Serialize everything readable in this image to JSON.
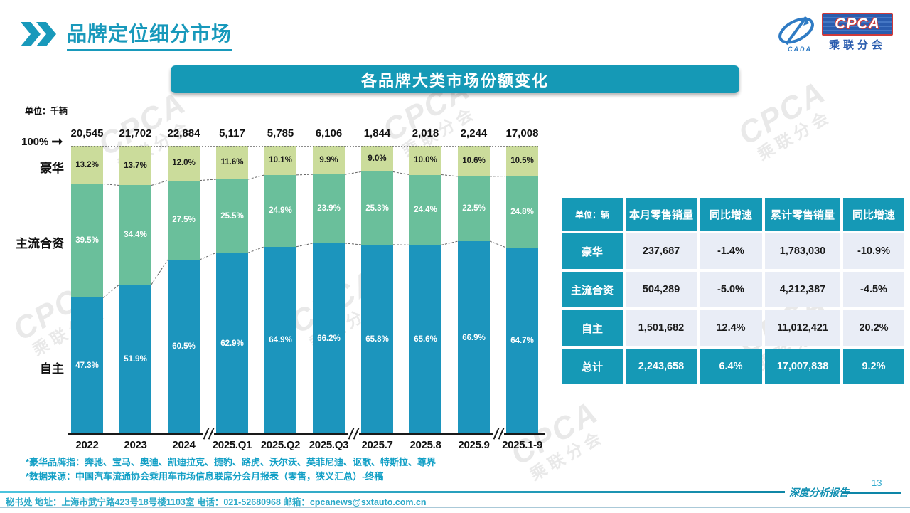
{
  "page": {
    "title": "品牌定位细分市场",
    "page_number": "13",
    "report_label": "深度分析报告"
  },
  "logo": {
    "cpca": "CPCA",
    "sub": "乘联分会",
    "mark_caption": "CADA"
  },
  "chart": {
    "banner_title": "各品牌大类市场份额变化",
    "unit_label": "单位：千辆",
    "axis_top_label": "100%",
    "side_labels": {
      "luxury": "豪华",
      "mainstream": "主流合资",
      "domestic": "自主"
    }
  },
  "chart_data": {
    "type": "bar",
    "stacked": true,
    "title": "各品牌大类市场份额变化",
    "unit": "千辆",
    "ylim": [
      0,
      100
    ],
    "categories": [
      "2022",
      "2023",
      "2024",
      "2025.Q1",
      "2025.Q2",
      "2025.Q3",
      "2025.7",
      "2025.8",
      "2025.9",
      "2025.1-9"
    ],
    "totals": [
      20545,
      21702,
      22884,
      5117,
      5785,
      6106,
      1844,
      2018,
      2244,
      17008
    ],
    "series": [
      {
        "name": "自主",
        "values": [
          47.3,
          51.9,
          60.5,
          62.9,
          64.9,
          66.2,
          65.8,
          65.6,
          66.9,
          64.7
        ],
        "color": "#1c95bd",
        "label_color": "#ffffff"
      },
      {
        "name": "主流合资",
        "values": [
          39.5,
          34.4,
          27.5,
          25.5,
          24.9,
          23.9,
          25.3,
          24.4,
          22.5,
          24.8
        ],
        "color": "#6abf9b",
        "label_color": "#ffffff"
      },
      {
        "name": "豪华",
        "values": [
          13.2,
          13.7,
          12.0,
          11.6,
          10.1,
          9.9,
          9.0,
          10.0,
          10.6,
          10.5
        ],
        "color": "#cbdc9b",
        "label_color": "#1a1a1a"
      }
    ],
    "axis_breaks_after": [
      "2024",
      "2025.Q3",
      "2025.9"
    ],
    "legend_position": "left",
    "grid": false
  },
  "table": {
    "unit_header": "单位：辆",
    "columns": [
      "本月零售销量",
      "同比增速",
      "累计零售销量",
      "同比增速"
    ],
    "rows": [
      {
        "label": "豪华",
        "values": [
          "237,687",
          "-1.4%",
          "1,783,030",
          "-10.9%"
        ],
        "highlight": false
      },
      {
        "label": "主流合资",
        "values": [
          "504,289",
          "-5.0%",
          "4,212,387",
          "-4.5%"
        ],
        "highlight": false
      },
      {
        "label": "自主",
        "values": [
          "1,501,682",
          "12.4%",
          "11,012,421",
          "20.2%"
        ],
        "highlight": false
      },
      {
        "label": "总计",
        "values": [
          "2,243,658",
          "6.4%",
          "17,007,838",
          "9.2%"
        ],
        "highlight": true
      }
    ]
  },
  "footnotes": [
    "*豪华品牌指：奔驰、宝马、奥迪、凯迪拉克、捷豹、路虎、沃尔沃、英菲尼迪、讴歌、特斯拉、尊界",
    "*数据来源：中国汽车流通协会乘用车市场信息联席分会月报表（零售，狭义汇总）-终稿"
  ],
  "footer": {
    "address_line": "秘书处  地址：上海市武宁路423号18号楼1103室  电话：021-52680968  邮箱：cpcanews@sxtauto.com.cn"
  },
  "colors": {
    "accent_teal": "#1599b6",
    "title_teal": "#1899bb",
    "bar_blue": "#1c95bd",
    "bar_green": "#6abf9b",
    "bar_light_green": "#cbdc9b",
    "table_cell_bg": "#e9edf6",
    "footnote_teal": "#13a0c6",
    "logo_blue": "#2a5cae",
    "logo_red": "#cf3a3a"
  }
}
